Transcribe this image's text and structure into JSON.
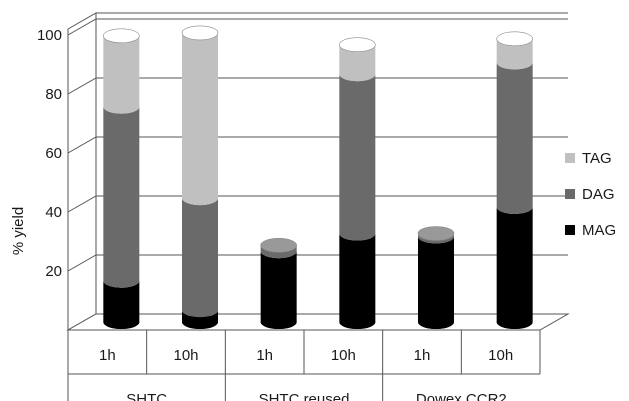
{
  "chart_data": {
    "type": "bar",
    "stacked": true,
    "style": "3d-cylinder",
    "ylabel": "% yield",
    "ylim": [
      0,
      100
    ],
    "yticks": [
      "20",
      "40",
      "60",
      "80",
      "100"
    ],
    "categories": [
      {
        "group": "SHTC",
        "label": "1h"
      },
      {
        "group": "SHTC",
        "label": "10h"
      },
      {
        "group": "SHTC reused",
        "label": "1h"
      },
      {
        "group": "SHTC reused",
        "label": "10h"
      },
      {
        "group": "Dowex CCR2",
        "label": "1h"
      },
      {
        "group": "Dowex CCR2",
        "label": "10h"
      }
    ],
    "groups": [
      "SHTC",
      "SHTC reused",
      "Dowex CCR2"
    ],
    "series": [
      {
        "name": "MAG",
        "color": "#000000",
        "values": [
          14,
          4,
          24,
          30,
          29,
          39
        ]
      },
      {
        "name": "DAG",
        "color": "#6a6a6a",
        "values": [
          59,
          38,
          2,
          54,
          1,
          49
        ]
      },
      {
        "name": "TAG",
        "color": "#c0c0c0",
        "values": [
          24,
          56,
          0,
          10,
          0,
          8
        ]
      }
    ],
    "legend": {
      "position": "right",
      "order": [
        "TAG",
        "DAG",
        "MAG"
      ]
    },
    "grid": true
  }
}
